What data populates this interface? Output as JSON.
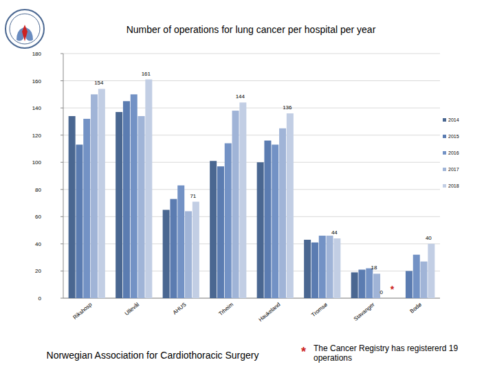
{
  "chart_data": {
    "type": "bar",
    "title": "Number of operations for lung cancer per hospital per year",
    "categories": [
      "Rikshosp",
      "Ullevål",
      "AHUS",
      "Trheim",
      "Haukeland",
      "Tromsø",
      "Stavanger",
      "Bodø"
    ],
    "series": [
      {
        "name": "2014",
        "color": "#4a6791",
        "values": [
          134,
          137,
          65,
          101,
          100,
          43,
          19,
          null
        ]
      },
      {
        "name": "2015",
        "color": "#5b7cb1",
        "values": [
          113,
          145,
          73,
          97,
          116,
          41,
          21,
          20
        ]
      },
      {
        "name": "2016",
        "color": "#7392c5",
        "values": [
          132,
          150,
          83,
          114,
          113,
          46,
          22,
          32
        ]
      },
      {
        "name": "2017",
        "color": "#a0b4d7",
        "values": [
          150,
          134,
          64,
          138,
          125,
          46,
          18,
          27
        ],
        "value_labels": [
          null,
          null,
          null,
          null,
          null,
          null,
          "18",
          null
        ]
      },
      {
        "name": "2018",
        "color": "#c2cee4",
        "values": [
          154,
          161,
          71,
          144,
          136,
          44,
          0,
          40
        ],
        "value_labels": [
          "154",
          "161",
          "71",
          "144",
          "136",
          "44",
          "0",
          "40"
        ]
      }
    ],
    "ylim": [
      0,
      180
    ],
    "yticks": [
      0,
      20,
      40,
      60,
      80,
      100,
      120,
      140,
      160,
      180
    ],
    "grid": true,
    "legend": "right",
    "annotations": [
      {
        "text": "*",
        "category": 6,
        "series": 4
      }
    ],
    "source": "Norwegian Association for Cardiothoracic Surgery",
    "footnote": {
      "marker": "*",
      "text": "The Cancer Registry has registererd 19 operations"
    }
  }
}
